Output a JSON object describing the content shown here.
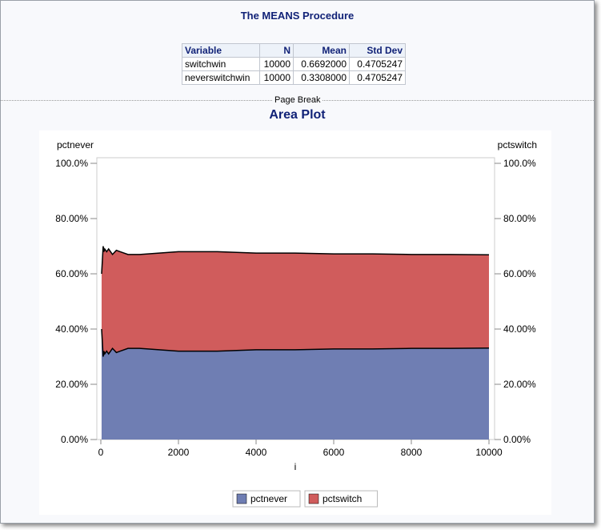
{
  "title": "The MEANS Procedure",
  "table": {
    "headers": [
      "Variable",
      "N",
      "Mean",
      "Std Dev"
    ],
    "rows": [
      [
        "switchwin",
        "10000",
        "0.6692000",
        "0.4705247"
      ],
      [
        "neverswitchwin",
        "10000",
        "0.3308000",
        "0.4705247"
      ]
    ]
  },
  "page_break": "Page Break",
  "chart_data": {
    "type": "area",
    "title": "Area Plot",
    "xlabel": "i",
    "ylabel_left": "pctnever",
    "ylabel_right": "pctswitch",
    "xlim": [
      0,
      10000
    ],
    "ylim": [
      0,
      1
    ],
    "xticks": [
      "0",
      "2000",
      "4000",
      "6000",
      "8000",
      "10000"
    ],
    "yticks": [
      "0.00%",
      "20.00%",
      "40.00%",
      "60.00%",
      "80.00%",
      "100.0%"
    ],
    "x": [
      20,
      40,
      60,
      80,
      100,
      150,
      200,
      300,
      400,
      500,
      700,
      1000,
      1500,
      2000,
      2500,
      3000,
      4000,
      5000,
      6000,
      7000,
      8000,
      9000,
      10000
    ],
    "series": [
      {
        "name": "pctswitch",
        "color": "#d05c5c",
        "values": [
          0.6,
          0.65,
          0.7,
          0.68,
          0.69,
          0.68,
          0.69,
          0.67,
          0.685,
          0.68,
          0.67,
          0.67,
          0.675,
          0.68,
          0.68,
          0.68,
          0.675,
          0.675,
          0.672,
          0.672,
          0.67,
          0.67,
          0.669
        ]
      },
      {
        "name": "pctnever",
        "color": "#6f7eb3",
        "values": [
          0.4,
          0.35,
          0.3,
          0.32,
          0.31,
          0.32,
          0.31,
          0.33,
          0.315,
          0.32,
          0.33,
          0.33,
          0.325,
          0.32,
          0.32,
          0.32,
          0.325,
          0.325,
          0.328,
          0.328,
          0.33,
          0.33,
          0.331
        ]
      }
    ]
  }
}
